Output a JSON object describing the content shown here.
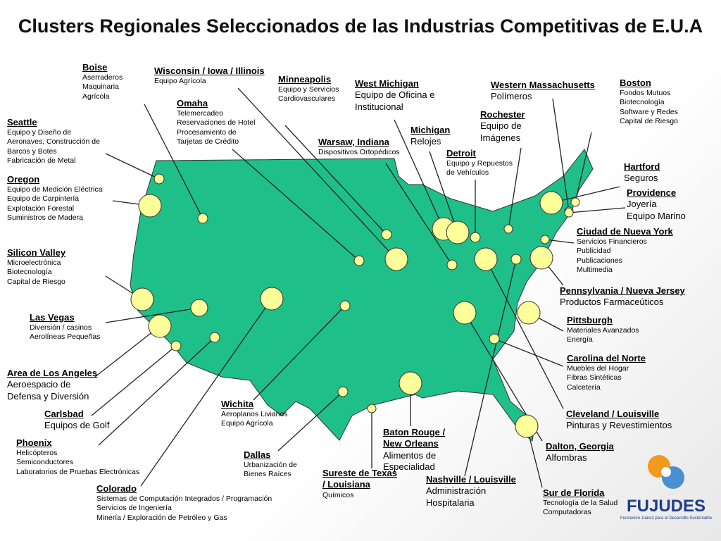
{
  "title": "Clusters Regionales Seleccionados de las Industrias Competitivas de E.U.A",
  "clusters": [
    {
      "name": "Boise",
      "items": [
        "Aserraderos",
        "Maquinaria",
        "Agrícola"
      ]
    },
    {
      "name": "Wisconsin / Iowa / Illinois",
      "items": [
        "Equipo Agrícola"
      ]
    },
    {
      "name": "Omaha",
      "items": [
        "Telemercadeo",
        "Reservaciones de Hotel",
        "Procesamiento de",
        "Tarjetas de Crédito"
      ]
    },
    {
      "name": "Minneapolis",
      "items": [
        "Equipo y Servicios",
        "Cardiovasculares"
      ]
    },
    {
      "name": "West Michigan",
      "items": [
        "Equipo de Oficina e",
        "Institucional"
      ]
    },
    {
      "name": "Western Massachusetts",
      "items": [
        "Polímeros"
      ]
    },
    {
      "name": "Boston",
      "items": [
        "Fondos Mutuos",
        "Biotecnología",
        "Software y Redes",
        "Capital de Riesgo"
      ]
    },
    {
      "name": "Seattle",
      "items": [
        "Equipo y Diseño de",
        "Aeronaves, Construcción de",
        "Barcos y Botes",
        "Fabricación de Metal"
      ]
    },
    {
      "name": "Rochester",
      "items": [
        "Equipo de",
        "Imágenes"
      ]
    },
    {
      "name": "Michigan",
      "items": [
        "Relojes"
      ]
    },
    {
      "name": "Warsaw, Indiana",
      "items": [
        "Dispositivos Ortopédicos"
      ]
    },
    {
      "name": "Detroit",
      "items": [
        "Equipo y Repuestos",
        "de Vehículos"
      ]
    },
    {
      "name": "Hartford",
      "items": [
        "Seguros"
      ]
    },
    {
      "name": "Oregon",
      "items": [
        "Equipo de Medición Eléctrica",
        "Equipo de Carpintería",
        "Explotación Forestal",
        "Suministros de Madera"
      ]
    },
    {
      "name": "Providence",
      "items": [
        "Joyería",
        "Equipo Marino"
      ]
    },
    {
      "name": "Ciudad de Nueva York",
      "items": [
        "Servicios Financieros",
        "Publicidad",
        "Publicaciones",
        "Multimedia"
      ]
    },
    {
      "name": "Silicon Valley",
      "items": [
        "Microelectrónica",
        "Biotecnología",
        "Capital de Riesgo"
      ]
    },
    {
      "name": "Pennsylvania / Nueva Jersey",
      "items": [
        "Productos Farmaceúticos"
      ]
    },
    {
      "name": "Las Vegas",
      "items": [
        "Diversión / casinos",
        "Aerolíneas Pequeñas"
      ]
    },
    {
      "name": "Pittsburgh",
      "items": [
        "Materiales Avanzados",
        "Energía"
      ]
    },
    {
      "name": "Carolina del Norte",
      "items": [
        "Muebles del Hogar",
        "Fibras Sintéticas",
        "Calcetería"
      ]
    },
    {
      "name": "Area de Los Angeles",
      "items": [
        "Aeroespacio de",
        "Defensa y Diversión"
      ]
    },
    {
      "name": "Wichita",
      "items": [
        "Aeroplanos Livianos",
        "Equipo Agrícola"
      ]
    },
    {
      "name": "Carlsbad",
      "items": [
        "Equipos de Golf"
      ]
    },
    {
      "name": "Cleveland / Louisville",
      "items": [
        "Pinturas y Revestimientos"
      ]
    },
    {
      "name": "Baton Rouge / New Orleans",
      "items": [
        "Alimentos de Especialidad"
      ]
    },
    {
      "name": "Phoenix",
      "items": [
        "Helicópteros",
        "Semiconductores",
        "Laboratorios de Pruebas Electrónicas"
      ]
    },
    {
      "name": "Dalton, Georgia",
      "items": [
        "Alfombras"
      ]
    },
    {
      "name": "Dallas",
      "items": [
        "Urbanización de",
        "Bienes Raíces"
      ]
    },
    {
      "name": "Colorado",
      "items": [
        "Sistemas de Computación Integrados / Programación",
        "Servicios de Ingeniería",
        "Minería / Exploración de Petróleo y Gas"
      ]
    },
    {
      "name": "Sureste de Texas / Louisiana",
      "items": [
        "Químicos"
      ]
    },
    {
      "name": "Nashville / Louisville",
      "items": [
        "Administración",
        "Hospitalaria"
      ]
    },
    {
      "name": "Sur de Florida",
      "items": [
        "Tecnología de la Salud",
        "Computadoras"
      ]
    }
  ],
  "logo": {
    "name": "FUJUDES",
    "tagline": "Fundación Juárez para el Desarrollo Sustentable"
  }
}
